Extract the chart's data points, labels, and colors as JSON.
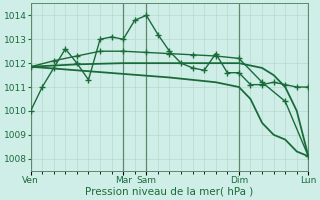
{
  "bg_color": "#d0eee8",
  "grid_color": "#b8d8cc",
  "line_color": "#1a6b3a",
  "vline_color": "#5a8a6a",
  "xlabel": "Pression niveau de la mer( hPa )",
  "ylim": [
    1007.5,
    1014.5
  ],
  "yticks": [
    1008,
    1009,
    1010,
    1011,
    1012,
    1013,
    1014
  ],
  "xlim": [
    0,
    24
  ],
  "vlines_x": [
    0,
    8,
    10,
    18,
    24
  ],
  "xtick_positions": [
    0,
    8,
    10,
    18,
    24
  ],
  "xtick_labels": [
    "Ven",
    "Mar",
    "Sam",
    "Dim",
    "Lun"
  ],
  "series": [
    {
      "x": [
        0,
        1,
        2,
        3,
        4,
        5,
        6,
        7,
        8,
        9,
        10,
        11,
        12,
        13,
        14,
        15,
        16,
        17,
        18,
        19,
        20,
        21,
        22,
        23,
        24
      ],
      "y": [
        1010.0,
        1011.0,
        1011.8,
        1012.6,
        1012.0,
        1011.3,
        1013.0,
        1013.1,
        1013.0,
        1013.8,
        1014.0,
        1013.2,
        1012.5,
        1012.0,
        1011.8,
        1011.7,
        1012.4,
        1011.6,
        1011.6,
        1011.1,
        1011.1,
        1011.2,
        1011.1,
        1011.0,
        1011.0
      ],
      "marker": "+",
      "lw": 1.0,
      "ms": 4
    },
    {
      "x": [
        0,
        2,
        4,
        6,
        8,
        10,
        12,
        14,
        16,
        18,
        20,
        22,
        24
      ],
      "y": [
        1011.85,
        1012.1,
        1012.3,
        1012.5,
        1012.5,
        1012.45,
        1012.4,
        1012.35,
        1012.3,
        1012.2,
        1011.2,
        1010.4,
        1008.1
      ],
      "marker": "+",
      "lw": 1.0,
      "ms": 4
    },
    {
      "x": [
        0,
        4,
        8,
        12,
        16,
        18,
        19,
        20,
        21,
        22,
        23,
        24
      ],
      "y": [
        1011.85,
        1011.95,
        1012.0,
        1012.0,
        1012.0,
        1012.0,
        1011.9,
        1011.8,
        1011.5,
        1011.0,
        1010.0,
        1008.1
      ],
      "marker": null,
      "lw": 1.3,
      "ms": 0
    },
    {
      "x": [
        0,
        4,
        8,
        12,
        16,
        18,
        19,
        20,
        21,
        22,
        23,
        24
      ],
      "y": [
        1011.85,
        1011.7,
        1011.55,
        1011.4,
        1011.2,
        1011.0,
        1010.5,
        1009.5,
        1009.0,
        1008.8,
        1008.3,
        1008.1
      ],
      "marker": null,
      "lw": 1.3,
      "ms": 0
    }
  ]
}
